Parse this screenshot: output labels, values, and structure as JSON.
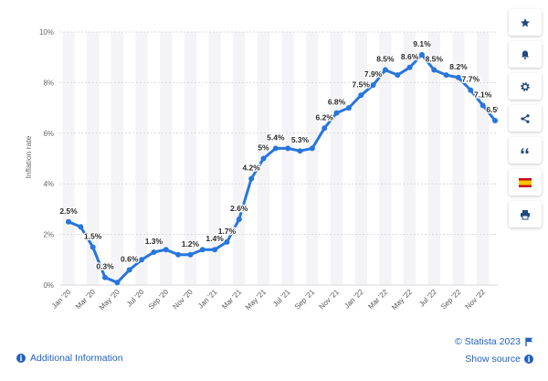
{
  "chart_data": {
    "type": "line",
    "ylabel": "Inflation rate",
    "ylim": [
      0,
      10
    ],
    "yticks": [
      "0%",
      "2%",
      "4%",
      "6%",
      "8%",
      "10%"
    ],
    "x_tick_labels": [
      "Jan '20",
      "Mar '20",
      "May '20",
      "Jul '20",
      "Sep '20",
      "Nov '20",
      "Jan '21",
      "Mar '21",
      "May '21",
      "Jul '21",
      "Sep '21",
      "Nov '21",
      "Jan '22",
      "Mar '22",
      "May '22",
      "Jul '22",
      "Sep '22",
      "Nov '22"
    ],
    "x": [
      "Jan '20",
      "Feb '20",
      "Mar '20",
      "Apr '20",
      "May '20",
      "Jun '20",
      "Jul '20",
      "Aug '20",
      "Sep '20",
      "Oct '20",
      "Nov '20",
      "Dec '20",
      "Jan '21",
      "Feb '21",
      "Mar '21",
      "Apr '21",
      "May '21",
      "Jun '21",
      "Jul '21",
      "Aug '21",
      "Sep '21",
      "Oct '21",
      "Nov '21",
      "Dec '21",
      "Jan '22",
      "Feb '22",
      "Mar '22",
      "Apr '22",
      "May '22",
      "Jun '22",
      "Jul '22",
      "Aug '22",
      "Sep '22",
      "Oct '22",
      "Nov '22",
      "Dec '22"
    ],
    "values": [
      2.5,
      2.3,
      1.5,
      0.3,
      0.1,
      0.6,
      1.0,
      1.3,
      1.4,
      1.2,
      1.2,
      1.4,
      1.4,
      1.7,
      2.6,
      4.2,
      5.0,
      5.4,
      5.4,
      5.3,
      5.4,
      6.2,
      6.8,
      7.0,
      7.5,
      7.9,
      8.5,
      8.3,
      8.6,
      9.1,
      8.5,
      8.3,
      8.2,
      7.7,
      7.1,
      6.5
    ],
    "data_labels": [
      {
        "i": 0,
        "text": "2.5%"
      },
      {
        "i": 2,
        "text": "1.5%"
      },
      {
        "i": 3,
        "text": "0.3%"
      },
      {
        "i": 5,
        "text": "0.6%"
      },
      {
        "i": 7,
        "text": "1.3%"
      },
      {
        "i": 10,
        "text": "1.2%"
      },
      {
        "i": 12,
        "text": "1.4%"
      },
      {
        "i": 13,
        "text": "1.7%"
      },
      {
        "i": 14,
        "text": "2.6%"
      },
      {
        "i": 15,
        "text": "4.2%"
      },
      {
        "i": 16,
        "text": "5%"
      },
      {
        "i": 17,
        "text": "5.4%"
      },
      {
        "i": 19,
        "text": "5.3%"
      },
      {
        "i": 21,
        "text": "6.2%"
      },
      {
        "i": 22,
        "text": "6.8%"
      },
      {
        "i": 24,
        "text": "7.5%"
      },
      {
        "i": 25,
        "text": "7.9%"
      },
      {
        "i": 26,
        "text": "8.5%"
      },
      {
        "i": 28,
        "text": "8.6%"
      },
      {
        "i": 29,
        "text": "9.1%"
      },
      {
        "i": 30,
        "text": "8.5%"
      },
      {
        "i": 32,
        "text": "8.2%"
      },
      {
        "i": 33,
        "text": "7.7%"
      },
      {
        "i": 34,
        "text": "7.1%"
      },
      {
        "i": 35,
        "text": "6.5%"
      }
    ],
    "grid": true,
    "line_color": "#2876dd",
    "band_color": "#f4f4f7"
  },
  "sidebar": {
    "buttons": [
      {
        "icon": "star-icon"
      },
      {
        "icon": "bell-icon"
      },
      {
        "icon": "gear-icon"
      },
      {
        "icon": "share-icon"
      },
      {
        "icon": "quote-icon"
      },
      {
        "icon": "spain-flag-icon"
      },
      {
        "icon": "print-icon"
      }
    ]
  },
  "footer": {
    "additional_info": "Additional Information",
    "credit": "© Statista 2023",
    "show_source": "Show source"
  },
  "colors": {
    "link": "#1f60c2",
    "icon": "#1f4a80"
  }
}
